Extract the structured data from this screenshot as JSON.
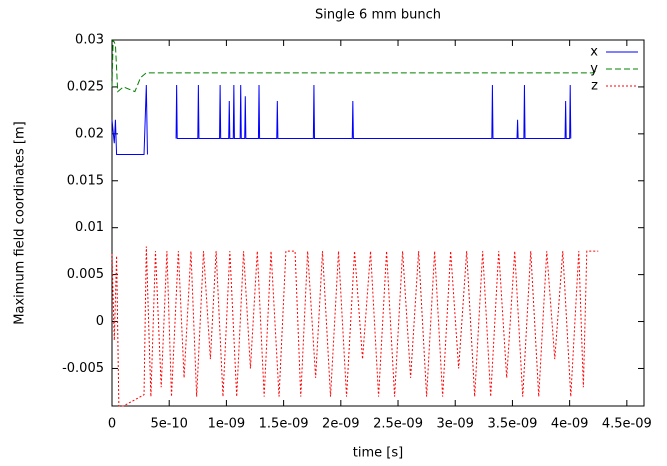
{
  "chart_data": {
    "type": "line",
    "title": "Single 6 mm bunch",
    "xlabel": "time [s]",
    "ylabel": "Maximum field coordinates [m]",
    "xlim": [
      0,
      4.65e-09
    ],
    "ylim": [
      -0.009,
      0.03
    ],
    "xticks": [
      0,
      {
        "value": 5e-10,
        "label": "5e-10"
      },
      {
        "value": 1e-09,
        "label": "1e-09"
      },
      {
        "value": 1.5e-09,
        "label": "1.5e-09"
      },
      {
        "value": 2e-09,
        "label": "2e-09"
      },
      {
        "value": 2.5e-09,
        "label": "2.5e-09"
      },
      {
        "value": 3e-09,
        "label": "3e-09"
      },
      {
        "value": 3.5e-09,
        "label": "3.5e-09"
      },
      {
        "value": 4e-09,
        "label": "4e-09"
      },
      {
        "value": 4.5e-09,
        "label": "4.5e-09"
      }
    ],
    "yticks": [
      -0.005,
      0,
      0.005,
      0.01,
      0.015,
      0.02,
      0.025,
      0.03
    ],
    "legend": "top-right",
    "series": [
      {
        "name": "x",
        "color": "#0000ff",
        "dash": "solid",
        "x": [
          0,
          2e-11,
          3e-11,
          4e-11,
          2.8e-10,
          2.9e-10,
          3e-10,
          3.1e-10,
          3.2e-10,
          5.6e-10,
          5.65e-10,
          5.7e-10,
          7.5e-10,
          7.55e-10,
          7.6e-10,
          9.4e-10,
          9.45e-10,
          9.5e-10,
          1.02e-09,
          1.025e-09,
          1.03e-09,
          1.06e-09,
          1.065e-09,
          1.07e-09,
          1.12e-09,
          1.125e-09,
          1.13e-09,
          1.16e-09,
          1.165e-09,
          1.17e-09,
          1.28e-09,
          1.285e-09,
          1.29e-09,
          1.44e-09,
          1.445e-09,
          1.45e-09,
          1.76e-09,
          1.765e-09,
          1.77e-09,
          2.1e-09,
          2.105e-09,
          2.11e-09,
          3.32e-09,
          3.325e-09,
          3.33e-09,
          3.54e-09,
          3.545e-09,
          3.55e-09,
          3.6e-09,
          3.605e-09,
          3.61e-09,
          3.96e-09,
          3.965e-09,
          3.97e-09,
          4e-09,
          4.005e-09,
          4.01e-09
        ],
        "values": [
          0.0215,
          0.019,
          0.0215,
          0.0178,
          0.0178,
          0.0215,
          0.0252,
          0.0178,
          null,
          0.0195,
          0.0252,
          0.0195,
          0.0195,
          0.0252,
          0.0195,
          0.0195,
          0.0252,
          0.0195,
          0.0195,
          0.0235,
          0.0195,
          0.0195,
          0.0252,
          0.0195,
          0.0195,
          0.0252,
          0.0195,
          0.0195,
          0.024,
          0.0195,
          0.0195,
          0.0252,
          0.0195,
          0.0195,
          0.0235,
          0.0195,
          0.0195,
          0.0252,
          0.0195,
          0.0195,
          0.0235,
          0.0195,
          0.0195,
          0.0252,
          0.0195,
          0.0195,
          0.0215,
          0.0195,
          0.0195,
          0.0252,
          0.0195,
          0.0195,
          0.0235,
          0.0195,
          0.0195,
          0.0252,
          0.0195
        ]
      },
      {
        "name": "y",
        "color": "#008000",
        "dash": "6,3",
        "x": [
          0,
          1e-11,
          3e-11,
          5e-11,
          1e-10,
          2e-10,
          2.5e-10,
          3e-10,
          1e-09,
          4.2e-09,
          4.23e-09
        ],
        "values": [
          0.025,
          0.03,
          0.0295,
          0.0245,
          0.025,
          0.0245,
          0.026,
          0.0265,
          0.0265,
          0.0265,
          0.0267
        ]
      },
      {
        "name": "z",
        "color": "#ff0000",
        "dash": "2,2",
        "x": [
          0,
          2e-11,
          4e-11,
          6e-11,
          1e-10,
          2.8e-10,
          3e-10,
          3.4e-10,
          3.8e-10,
          4.3e-10,
          4.8e-10,
          5.2e-10,
          5.8e-10,
          6.3e-10,
          6.9e-10,
          7.4e-10,
          8e-10,
          8.6e-10,
          9.1e-10,
          9.7e-10,
          1.03e-09,
          1.09e-09,
          1.15e-09,
          1.21e-09,
          1.27e-09,
          1.33e-09,
          1.39e-09,
          1.46e-09,
          1.52e-09,
          1.6e-09,
          1.65e-09,
          1.71e-09,
          1.78e-09,
          1.84e-09,
          1.91e-09,
          1.98e-09,
          2.05e-09,
          2.12e-09,
          2.19e-09,
          2.26e-09,
          2.33e-09,
          2.4e-09,
          2.47e-09,
          2.54e-09,
          2.61e-09,
          2.68e-09,
          2.75e-09,
          2.82e-09,
          2.89e-09,
          2.96e-09,
          3.03e-09,
          3.1e-09,
          3.17e-09,
          3.24e-09,
          3.31e-09,
          3.38e-09,
          3.45e-09,
          3.52e-09,
          3.59e-09,
          3.66e-09,
          3.73e-09,
          3.8e-09,
          3.87e-09,
          3.94e-09,
          4.01e-09,
          4.08e-09,
          4.12e-09,
          4.15e-09,
          4.25e-09
        ],
        "values": [
          0.0072,
          -0.002,
          0.007,
          -0.009,
          -0.009,
          -0.0078,
          0.008,
          -0.008,
          0.0075,
          -0.007,
          0.0075,
          -0.008,
          0.0075,
          -0.006,
          0.0075,
          -0.008,
          0.0075,
          -0.004,
          0.0075,
          -0.008,
          0.0075,
          -0.008,
          0.0075,
          -0.005,
          0.0075,
          -0.008,
          0.0075,
          -0.008,
          0.0075,
          0.0075,
          -0.008,
          0.0075,
          -0.006,
          0.0075,
          -0.008,
          0.0075,
          -0.008,
          0.0075,
          -0.004,
          0.0075,
          -0.008,
          0.0075,
          -0.008,
          0.0075,
          -0.006,
          0.0075,
          -0.008,
          0.0075,
          -0.008,
          0.0075,
          -0.005,
          0.0075,
          -0.008,
          0.0075,
          -0.008,
          0.0075,
          -0.006,
          0.0075,
          -0.008,
          0.0075,
          -0.008,
          0.0075,
          -0.004,
          0.0075,
          -0.008,
          0.0075,
          -0.007,
          0.0075,
          0.0075
        ]
      }
    ]
  }
}
